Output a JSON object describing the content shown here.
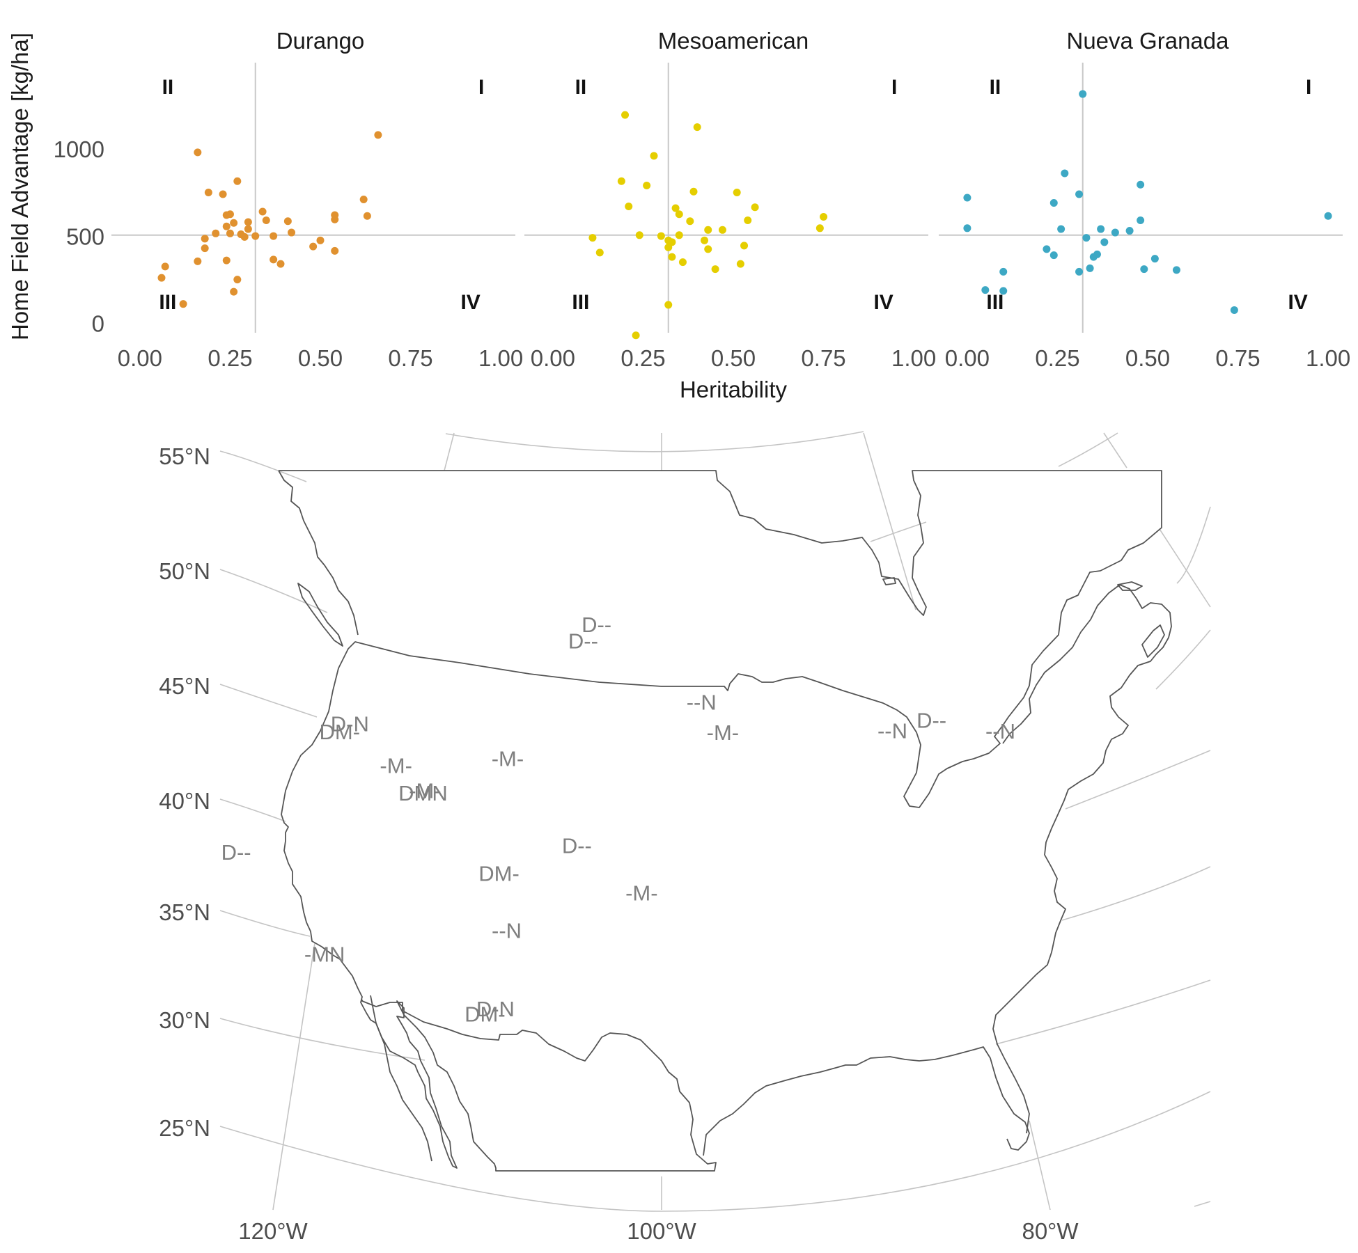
{
  "chart_data": [
    {
      "type": "scatter",
      "facets": [
        "Durango",
        "Mesoamerican",
        "Nueva Granada"
      ],
      "xlabel": "Heritability",
      "ylabel": "Home Field Advantage [kg/ha]",
      "xlim": [
        -0.05,
        1.05
      ],
      "ylim": [
        -90,
        1500
      ],
      "x_ticks": [
        "0.00",
        "0.25",
        "0.50",
        "0.75",
        "1.00"
      ],
      "x_tick_values": [
        0,
        0.25,
        0.5,
        0.75,
        1.0
      ],
      "y_ticks": [
        "0",
        "500",
        "1000"
      ],
      "y_tick_values": [
        0,
        500,
        1000
      ],
      "reference_lines": {
        "x": 0.32,
        "y": 510
      },
      "quadrant_labels": {
        "upper_left": "II",
        "upper_right": "I",
        "lower_left": "III",
        "lower_right": "IV"
      },
      "series": [
        {
          "facet": "Durango",
          "color": "#E0912F",
          "points": [
            [
              0.06,
              265
            ],
            [
              0.07,
              330
            ],
            [
              0.12,
              115
            ],
            [
              0.16,
              985
            ],
            [
              0.16,
              360
            ],
            [
              0.18,
              435
            ],
            [
              0.18,
              490
            ],
            [
              0.19,
              755
            ],
            [
              0.21,
              520
            ],
            [
              0.23,
              745
            ],
            [
              0.24,
              560
            ],
            [
              0.24,
              625
            ],
            [
              0.25,
              630
            ],
            [
              0.24,
              365
            ],
            [
              0.25,
              520
            ],
            [
              0.26,
              580
            ],
            [
              0.26,
              185
            ],
            [
              0.27,
              255
            ],
            [
              0.27,
              820
            ],
            [
              0.28,
              515
            ],
            [
              0.29,
              500
            ],
            [
              0.3,
              545
            ],
            [
              0.3,
              585
            ],
            [
              0.32,
              505
            ],
            [
              0.34,
              645
            ],
            [
              0.35,
              595
            ],
            [
              0.37,
              505
            ],
            [
              0.37,
              370
            ],
            [
              0.39,
              345
            ],
            [
              0.41,
              590
            ],
            [
              0.42,
              525
            ],
            [
              0.48,
              445
            ],
            [
              0.5,
              480
            ],
            [
              0.54,
              420
            ],
            [
              0.54,
              600
            ],
            [
              0.54,
              625
            ],
            [
              0.62,
              715
            ],
            [
              0.63,
              620
            ],
            [
              0.66,
              1085
            ]
          ]
        },
        {
          "facet": "Mesoamerican",
          "color": "#E5CE00",
          "points": [
            [
              0.11,
              495
            ],
            [
              0.13,
              410
            ],
            [
              0.19,
              820
            ],
            [
              0.2,
              1200
            ],
            [
              0.21,
              675
            ],
            [
              0.23,
              -65
            ],
            [
              0.24,
              510
            ],
            [
              0.26,
              795
            ],
            [
              0.28,
              965
            ],
            [
              0.3,
              505
            ],
            [
              0.32,
              110
            ],
            [
              0.32,
              480
            ],
            [
              0.32,
              440
            ],
            [
              0.33,
              385
            ],
            [
              0.33,
              470
            ],
            [
              0.34,
              665
            ],
            [
              0.35,
              510
            ],
            [
              0.35,
              630
            ],
            [
              0.36,
              355
            ],
            [
              0.38,
              590
            ],
            [
              0.39,
              760
            ],
            [
              0.4,
              1130
            ],
            [
              0.42,
              480
            ],
            [
              0.43,
              540
            ],
            [
              0.43,
              430
            ],
            [
              0.45,
              315
            ],
            [
              0.47,
              540
            ],
            [
              0.51,
              755
            ],
            [
              0.52,
              345
            ],
            [
              0.53,
              450
            ],
            [
              0.54,
              595
            ],
            [
              0.56,
              670
            ],
            [
              0.74,
              550
            ],
            [
              0.75,
              615
            ]
          ]
        },
        {
          "facet": "Nueva Granada",
          "color": "#3DA8C4",
          "points": [
            [
              0.0,
              725
            ],
            [
              0.0,
              550
            ],
            [
              0.05,
              195
            ],
            [
              0.1,
              300
            ],
            [
              0.1,
              190
            ],
            [
              0.22,
              430
            ],
            [
              0.24,
              395
            ],
            [
              0.24,
              695
            ],
            [
              0.26,
              545
            ],
            [
              0.27,
              865
            ],
            [
              0.31,
              745
            ],
            [
              0.31,
              300
            ],
            [
              0.32,
              1320
            ],
            [
              0.33,
              495
            ],
            [
              0.34,
              320
            ],
            [
              0.35,
              385
            ],
            [
              0.36,
              400
            ],
            [
              0.37,
              545
            ],
            [
              0.38,
              470
            ],
            [
              0.41,
              525
            ],
            [
              0.45,
              535
            ],
            [
              0.48,
              595
            ],
            [
              0.48,
              800
            ],
            [
              0.49,
              315
            ],
            [
              0.52,
              375
            ],
            [
              0.58,
              310
            ],
            [
              0.74,
              80
            ],
            [
              1.0,
              620
            ]
          ]
        }
      ]
    },
    {
      "type": "map",
      "region": "North America (USA, southern Canada, northern Mexico)",
      "lat_ticks": [
        "55°N",
        "50°N",
        "45°N",
        "40°N",
        "35°N",
        "30°N",
        "25°N"
      ],
      "lon_ticks": [
        "120°W",
        "100°W",
        "80°W"
      ],
      "site_labels": [
        {
          "text": "D--",
          "lon": -103.5,
          "lat": 47.3
        },
        {
          "text": "D--",
          "lon": -104.2,
          "lat": 46.6
        },
        {
          "text": "D-N",
          "lon": -116.4,
          "lat": 43.6
        },
        {
          "text": "DM-",
          "lon": -116.9,
          "lat": 43.3
        },
        {
          "text": "--N",
          "lon": -97.9,
          "lat": 43.9
        },
        {
          "text": "-M-",
          "lon": -96.8,
          "lat": 42.6
        },
        {
          "text": "-M-",
          "lon": -113.8,
          "lat": 41.6
        },
        {
          "text": "-M-",
          "lon": -108.0,
          "lat": 41.6
        },
        {
          "text": "-M-",
          "lon": -112.2,
          "lat": 40.4
        },
        {
          "text": "DMN",
          "lon": -112.3,
          "lat": 40.3
        },
        {
          "text": "D--",
          "lon": -121.7,
          "lat": 38.5
        },
        {
          "text": "D--",
          "lon": -104.3,
          "lat": 37.7
        },
        {
          "text": "DM-",
          "lon": -108.2,
          "lat": 36.6
        },
        {
          "text": "-M-",
          "lon": -101.0,
          "lat": 35.6
        },
        {
          "text": "--N",
          "lon": -107.7,
          "lat": 34.1
        },
        {
          "text": "-MN",
          "lon": -116.7,
          "lat": 33.6
        },
        {
          "text": "D-N",
          "lon": -108.1,
          "lat": 30.7
        },
        {
          "text": "DM-",
          "lon": -108.6,
          "lat": 30.5
        },
        {
          "text": "--N",
          "lon": -87.9,
          "lat": 43.0
        },
        {
          "text": "D--",
          "lon": -85.8,
          "lat": 43.6
        },
        {
          "text": "--N",
          "lon": -82.2,
          "lat": 43.4
        }
      ]
    }
  ]
}
